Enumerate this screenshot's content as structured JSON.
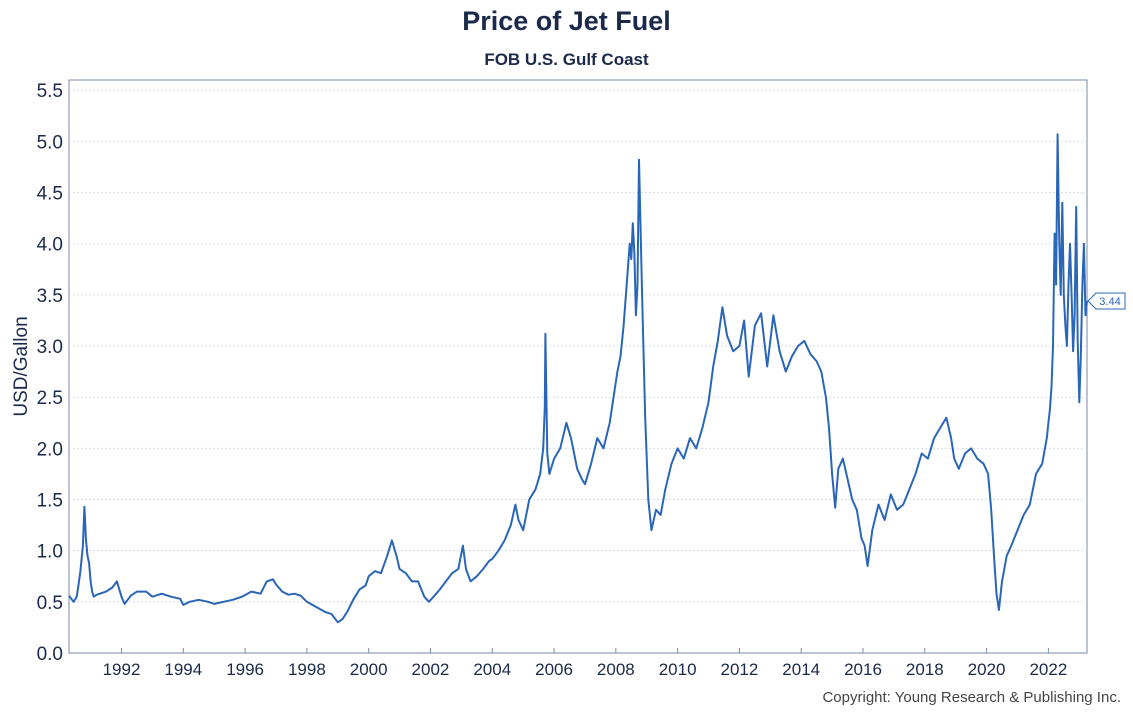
{
  "chart_data": {
    "type": "line",
    "title": "Price of Jet Fuel",
    "subtitle": "FOB U.S. Gulf Coast",
    "ylabel": "USD/Gallon",
    "xlabel": "",
    "ylim": [
      0.0,
      5.6
    ],
    "xlim": [
      1990.3,
      2023.25
    ],
    "yticks": [
      "0.0",
      "0.5",
      "1.0",
      "1.5",
      "2.0",
      "2.5",
      "3.0",
      "3.5",
      "4.0",
      "4.5",
      "5.0",
      "5.5"
    ],
    "xticks": [
      "1992",
      "1994",
      "1996",
      "1998",
      "2000",
      "2002",
      "2004",
      "2006",
      "2008",
      "2010",
      "2012",
      "2014",
      "2016",
      "2018",
      "2020",
      "2022"
    ],
    "grid": "horizontal",
    "last_value_label": "3.44",
    "series": [
      {
        "color": "#2a66b8",
        "x": [
          1990.3,
          1990.45,
          1990.55,
          1990.6,
          1990.67,
          1990.75,
          1990.8,
          1990.85,
          1990.9,
          1990.95,
          1991.0,
          1991.05,
          1991.1,
          1991.2,
          1991.3,
          1991.5,
          1991.7,
          1991.85,
          1992.0,
          1992.1,
          1992.3,
          1992.5,
          1992.8,
          1993.0,
          1993.3,
          1993.6,
          1993.9,
          1994.0,
          1994.2,
          1994.5,
          1994.8,
          1995.0,
          1995.3,
          1995.6,
          1995.9,
          1996.2,
          1996.5,
          1996.7,
          1996.9,
          1997.0,
          1997.2,
          1997.4,
          1997.6,
          1997.8,
          1998.0,
          1998.3,
          1998.6,
          1998.8,
          1999.0,
          1999.15,
          1999.3,
          1999.5,
          1999.7,
          1999.9,
          2000.0,
          2000.2,
          2000.4,
          2000.6,
          2000.75,
          2000.9,
          2001.0,
          2001.2,
          2001.4,
          2001.6,
          2001.8,
          2001.95,
          2002.1,
          2002.3,
          2002.5,
          2002.7,
          2002.9,
          2003.05,
          2003.15,
          2003.3,
          2003.5,
          2003.7,
          2003.9,
          2004.0,
          2004.2,
          2004.4,
          2004.6,
          2004.75,
          2004.85,
          2005.0,
          2005.2,
          2005.4,
          2005.55,
          2005.65,
          2005.7,
          2005.72,
          2005.78,
          2005.85,
          2006.0,
          2006.2,
          2006.4,
          2006.55,
          2006.75,
          2006.9,
          2007.0,
          2007.2,
          2007.4,
          2007.6,
          2007.8,
          2007.95,
          2008.05,
          2008.15,
          2008.25,
          2008.35,
          2008.45,
          2008.5,
          2008.55,
          2008.6,
          2008.65,
          2008.7,
          2008.75,
          2008.85,
          2008.95,
          2009.05,
          2009.15,
          2009.3,
          2009.45,
          2009.6,
          2009.8,
          2010.0,
          2010.2,
          2010.4,
          2010.6,
          2010.8,
          2011.0,
          2011.15,
          2011.3,
          2011.45,
          2011.6,
          2011.8,
          2012.0,
          2012.15,
          2012.3,
          2012.5,
          2012.7,
          2012.9,
          2013.1,
          2013.3,
          2013.5,
          2013.7,
          2013.9,
          2014.1,
          2014.3,
          2014.5,
          2014.65,
          2014.8,
          2014.9,
          2015.0,
          2015.1,
          2015.2,
          2015.35,
          2015.5,
          2015.65,
          2015.8,
          2015.95,
          2016.05,
          2016.15,
          2016.3,
          2016.5,
          2016.7,
          2016.9,
          2017.1,
          2017.3,
          2017.5,
          2017.7,
          2017.9,
          2018.1,
          2018.3,
          2018.5,
          2018.7,
          2018.85,
          2018.95,
          2019.1,
          2019.3,
          2019.5,
          2019.7,
          2019.9,
          2020.05,
          2020.15,
          2020.25,
          2020.32,
          2020.4,
          2020.5,
          2020.65,
          2020.8,
          2021.0,
          2021.2,
          2021.4,
          2021.6,
          2021.8,
          2021.95,
          2022.0,
          2022.05,
          2022.1,
          2022.15,
          2022.2,
          2022.25,
          2022.3,
          2022.35,
          2022.4,
          2022.45,
          2022.5,
          2022.55,
          2022.6,
          2022.65,
          2022.7,
          2022.75,
          2022.8,
          2022.85,
          2022.9,
          2022.95,
          2023.0,
          2023.05,
          2023.1,
          2023.15,
          2023.2,
          2023.25
        ],
        "y": [
          0.56,
          0.5,
          0.55,
          0.65,
          0.8,
          1.05,
          1.43,
          1.1,
          0.95,
          0.88,
          0.7,
          0.6,
          0.55,
          0.57,
          0.58,
          0.6,
          0.64,
          0.7,
          0.55,
          0.48,
          0.56,
          0.6,
          0.6,
          0.55,
          0.58,
          0.55,
          0.53,
          0.47,
          0.5,
          0.52,
          0.5,
          0.48,
          0.5,
          0.52,
          0.55,
          0.6,
          0.58,
          0.7,
          0.72,
          0.67,
          0.6,
          0.57,
          0.58,
          0.56,
          0.5,
          0.45,
          0.4,
          0.38,
          0.3,
          0.33,
          0.4,
          0.52,
          0.62,
          0.66,
          0.75,
          0.8,
          0.78,
          0.95,
          1.1,
          0.95,
          0.82,
          0.78,
          0.7,
          0.7,
          0.55,
          0.5,
          0.55,
          0.62,
          0.7,
          0.78,
          0.82,
          1.05,
          0.82,
          0.7,
          0.75,
          0.82,
          0.9,
          0.92,
          1.0,
          1.1,
          1.25,
          1.45,
          1.3,
          1.2,
          1.5,
          1.6,
          1.75,
          2.0,
          2.4,
          3.12,
          1.95,
          1.75,
          1.9,
          2.0,
          2.25,
          2.1,
          1.8,
          1.7,
          1.65,
          1.85,
          2.1,
          2.0,
          2.25,
          2.55,
          2.75,
          2.9,
          3.2,
          3.6,
          4.0,
          3.85,
          4.2,
          3.9,
          3.3,
          3.6,
          4.82,
          3.5,
          2.3,
          1.5,
          1.2,
          1.4,
          1.35,
          1.6,
          1.85,
          2.0,
          1.9,
          2.1,
          2.0,
          2.2,
          2.45,
          2.8,
          3.05,
          3.38,
          3.1,
          2.95,
          3.0,
          3.25,
          2.7,
          3.2,
          3.32,
          2.8,
          3.3,
          2.95,
          2.75,
          2.9,
          3.0,
          3.05,
          2.92,
          2.85,
          2.75,
          2.5,
          2.2,
          1.75,
          1.42,
          1.8,
          1.9,
          1.7,
          1.5,
          1.4,
          1.12,
          1.05,
          0.85,
          1.2,
          1.45,
          1.3,
          1.55,
          1.4,
          1.45,
          1.6,
          1.75,
          1.95,
          1.9,
          2.1,
          2.2,
          2.3,
          2.1,
          1.9,
          1.8,
          1.95,
          2.0,
          1.9,
          1.85,
          1.75,
          1.4,
          0.9,
          0.58,
          0.42,
          0.7,
          0.95,
          1.05,
          1.2,
          1.35,
          1.45,
          1.75,
          1.85,
          2.1,
          2.25,
          2.38,
          2.6,
          3.0,
          4.1,
          3.6,
          5.07,
          4.05,
          3.5,
          4.4,
          3.5,
          3.2,
          3.0,
          3.6,
          4.0,
          3.5,
          2.95,
          3.3,
          4.36,
          3.05,
          2.45,
          2.9,
          3.6,
          4.0,
          3.3,
          3.44
        ]
      }
    ]
  },
  "copyright": "Copyright: Young Research & Publishing Inc."
}
